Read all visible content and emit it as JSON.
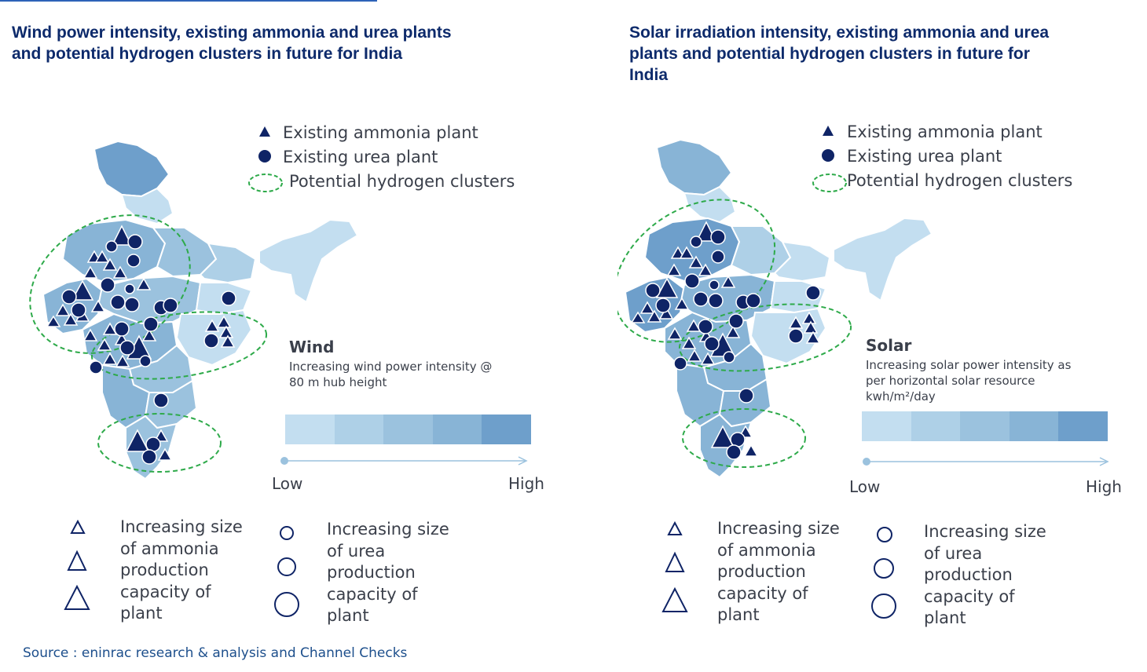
{
  "source": "Source : eninrac research & analysis and  Channel Checks",
  "legend_labels": {
    "ammonia": "Existing ammonia plant",
    "urea": "Existing urea plant",
    "clusters": "Potential hydrogen clusters"
  },
  "size_legend": {
    "ammonia": "Increasing size of ammonia production capacity of plant",
    "urea": "Increasing size of urea production capacity of plant"
  },
  "colors": {
    "marker": "#0f2466",
    "cluster": "#2eaa4a",
    "scale": [
      "#c3def0",
      "#aed0e7",
      "#9bc2de",
      "#88b4d6",
      "#6e9fcb"
    ]
  },
  "panels": [
    {
      "id": "wind",
      "title": "Wind power intensity, existing ammonia and urea plants and potential hydrogen clusters in future for India",
      "scale_title": "Wind",
      "scale_desc": "Increasing wind power intensity @ 80 m hub height",
      "scale_low": "Low",
      "scale_high": "High"
    },
    {
      "id": "solar",
      "title": "Solar irradiation intensity, existing ammonia and urea plants and potential hydrogen clusters in future for India",
      "scale_title": "Solar",
      "scale_desc": "Increasing solar power intensity as per horizontal solar resource kwh/m²/day",
      "scale_low": "Low",
      "scale_high": "High"
    }
  ]
}
